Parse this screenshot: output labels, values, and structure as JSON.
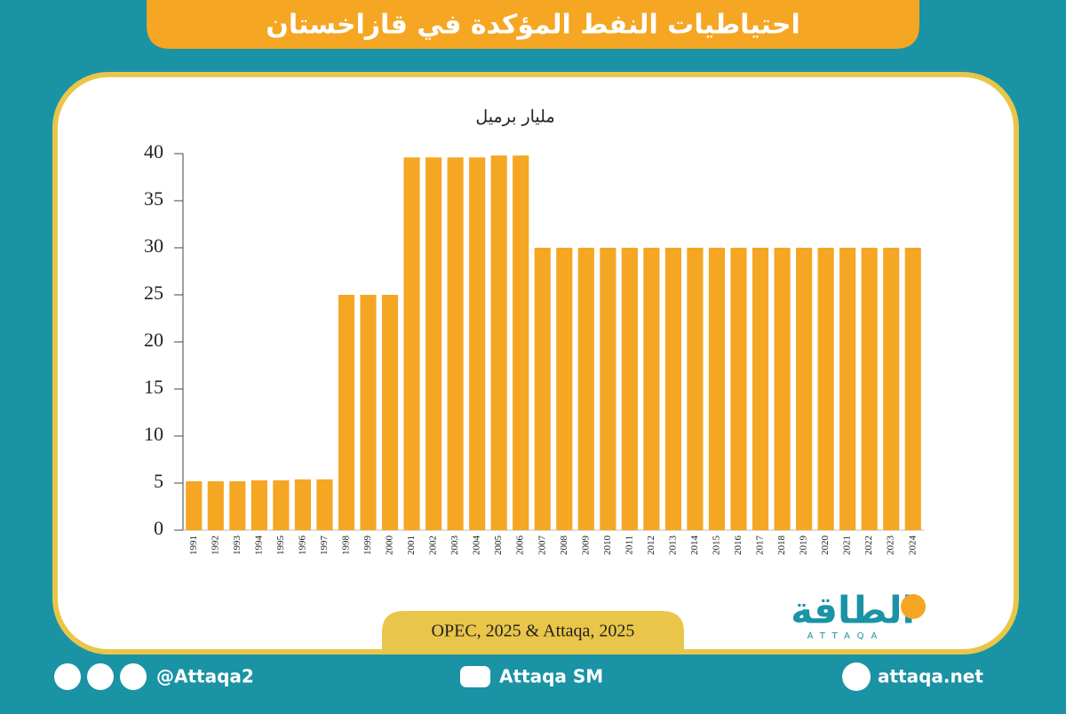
{
  "chart_data": {
    "type": "bar",
    "title": "احتياطيات النفط المؤكدة في قازاخستان",
    "subtitle": "مليار برميل",
    "categories": [
      "1991",
      "1992",
      "1993",
      "1994",
      "1995",
      "1996",
      "1997",
      "1998",
      "1999",
      "2000",
      "2001",
      "2002",
      "2003",
      "2004",
      "2005",
      "2006",
      "2007",
      "2008",
      "2009",
      "2010",
      "2011",
      "2012",
      "2013",
      "2014",
      "2015",
      "2016",
      "2017",
      "2018",
      "2019",
      "2020",
      "2021",
      "2022",
      "2023",
      "2024"
    ],
    "values": [
      5.2,
      5.2,
      5.2,
      5.3,
      5.3,
      5.4,
      5.4,
      25,
      25,
      25,
      39.6,
      39.6,
      39.6,
      39.6,
      39.8,
      39.8,
      30,
      30,
      30,
      30,
      30,
      30,
      30,
      30,
      30,
      30,
      30,
      30,
      30,
      30,
      30,
      30,
      30,
      30
    ],
    "color": "#f5a623",
    "ylim": [
      0,
      40
    ],
    "yticks": [
      0,
      5,
      10,
      15,
      20,
      25,
      30,
      35,
      40
    ],
    "grid": false
  },
  "source": "OPEC, 2025 & Attaqa, 2025",
  "logo": {
    "arabic": "الطاقة",
    "latin": "ATTAQA"
  },
  "footer": {
    "social": "@Attaqa2",
    "youtube": "Attaqa SM",
    "website": "attaqa.net"
  }
}
